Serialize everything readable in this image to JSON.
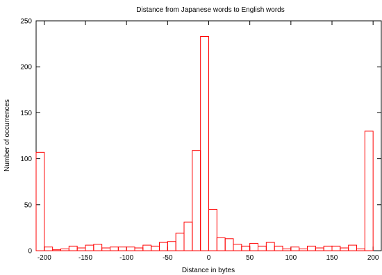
{
  "chart_data": {
    "type": "bar",
    "title": "Distance from Japanese words to English words",
    "xlabel": "Distance in bytes",
    "ylabel": "Number of occurrences",
    "xlim": [
      -210,
      210
    ],
    "ylim": [
      0,
      250
    ],
    "x_ticks": [
      -200,
      -150,
      -100,
      -50,
      0,
      50,
      100,
      150,
      200
    ],
    "y_ticks": [
      0,
      50,
      100,
      150,
      200,
      250
    ],
    "bin_width": 10,
    "bar_color": "#ff0000",
    "grid": false,
    "legend": "none",
    "bins": [
      {
        "x": -205,
        "value": 107
      },
      {
        "x": -195,
        "value": 4
      },
      {
        "x": -185,
        "value": 1
      },
      {
        "x": -175,
        "value": 2
      },
      {
        "x": -165,
        "value": 5
      },
      {
        "x": -155,
        "value": 3
      },
      {
        "x": -145,
        "value": 6
      },
      {
        "x": -135,
        "value": 7
      },
      {
        "x": -125,
        "value": 3
      },
      {
        "x": -115,
        "value": 4
      },
      {
        "x": -105,
        "value": 4
      },
      {
        "x": -95,
        "value": 4
      },
      {
        "x": -85,
        "value": 3
      },
      {
        "x": -75,
        "value": 6
      },
      {
        "x": -65,
        "value": 5
      },
      {
        "x": -55,
        "value": 9
      },
      {
        "x": -45,
        "value": 10
      },
      {
        "x": -35,
        "value": 19
      },
      {
        "x": -25,
        "value": 31
      },
      {
        "x": -15,
        "value": 109
      },
      {
        "x": -5,
        "value": 233
      },
      {
        "x": 5,
        "value": 45
      },
      {
        "x": 15,
        "value": 14
      },
      {
        "x": 25,
        "value": 13
      },
      {
        "x": 35,
        "value": 7
      },
      {
        "x": 45,
        "value": 5
      },
      {
        "x": 55,
        "value": 8
      },
      {
        "x": 65,
        "value": 5
      },
      {
        "x": 75,
        "value": 9
      },
      {
        "x": 85,
        "value": 5
      },
      {
        "x": 95,
        "value": 2
      },
      {
        "x": 105,
        "value": 4
      },
      {
        "x": 115,
        "value": 2
      },
      {
        "x": 125,
        "value": 5
      },
      {
        "x": 135,
        "value": 3
      },
      {
        "x": 145,
        "value": 5
      },
      {
        "x": 155,
        "value": 5
      },
      {
        "x": 165,
        "value": 3
      },
      {
        "x": 175,
        "value": 6
      },
      {
        "x": 185,
        "value": 2
      },
      {
        "x": 195,
        "value": 130
      }
    ]
  }
}
